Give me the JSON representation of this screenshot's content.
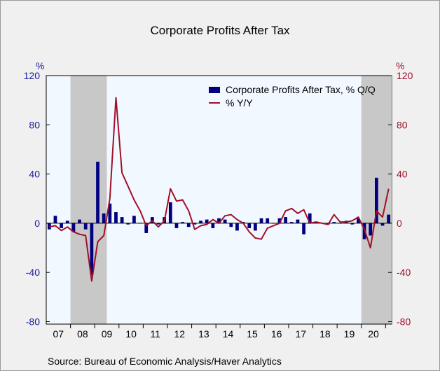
{
  "title": "Corporate Profits After Tax",
  "source": "Source:  Bureau of Economic Analysis/Haver Analytics",
  "colors": {
    "bar": "#000080",
    "line": "#a0102a",
    "left_axis": "#1a1aa0",
    "right_axis": "#a0102a",
    "plot_bg": "#f2f8ff",
    "recession": "#c8c8c8"
  },
  "chart_data": {
    "type": "bar+line",
    "left_unit": "%",
    "right_unit": "%",
    "ylim": [
      -82,
      120
    ],
    "left_ticks": [
      120,
      80,
      40,
      0,
      -40,
      -80
    ],
    "right_ticks": [
      120,
      80,
      40,
      0,
      -40,
      -80
    ],
    "tick_labels_left": [
      "120",
      "80",
      "40",
      "0",
      "-40",
      "-80"
    ],
    "tick_labels_right": [
      "120",
      "80",
      "40",
      "0",
      "-40",
      "-80"
    ],
    "year_labels": [
      "07",
      "08",
      "09",
      "10",
      "11",
      "12",
      "13",
      "14",
      "15",
      "16",
      "17",
      "18",
      "19",
      "20"
    ],
    "start": "2007Q1",
    "end": "2021Q1",
    "recessions": [
      [
        "2008Q1",
        "2009Q2"
      ],
      [
        "2020Q1",
        "2021Q1"
      ]
    ],
    "legend_position": "top-right",
    "series": [
      {
        "name": "Corporate Profits After Tax, % Q/Q",
        "type": "bar",
        "x": [
          "2007Q1",
          "2007Q2",
          "2007Q3",
          "2007Q4",
          "2008Q1",
          "2008Q2",
          "2008Q3",
          "2008Q4",
          "2009Q1",
          "2009Q2",
          "2009Q3",
          "2009Q4",
          "2010Q1",
          "2010Q2",
          "2010Q3",
          "2010Q4",
          "2011Q1",
          "2011Q2",
          "2011Q3",
          "2011Q4",
          "2012Q1",
          "2012Q2",
          "2012Q3",
          "2012Q4",
          "2013Q1",
          "2013Q2",
          "2013Q3",
          "2013Q4",
          "2014Q1",
          "2014Q2",
          "2014Q3",
          "2014Q4",
          "2015Q1",
          "2015Q2",
          "2015Q3",
          "2015Q4",
          "2016Q1",
          "2016Q2",
          "2016Q3",
          "2016Q4",
          "2017Q1",
          "2017Q2",
          "2017Q3",
          "2017Q4",
          "2018Q1",
          "2018Q2",
          "2018Q3",
          "2018Q4",
          "2019Q1",
          "2019Q2",
          "2019Q3",
          "2019Q4",
          "2020Q1",
          "2020Q2",
          "2020Q3",
          "2020Q4",
          "2021Q1"
        ],
        "values": [
          -5,
          6,
          -4,
          2,
          -7,
          3,
          -5,
          -42,
          50,
          8,
          16,
          9,
          5,
          -1,
          6,
          0,
          -8,
          5,
          -1,
          5,
          17,
          -4,
          1,
          -3,
          -1,
          2,
          3,
          -4,
          4,
          3,
          -3,
          -6,
          1,
          -4,
          -6,
          4,
          4,
          0,
          4,
          5,
          1,
          3,
          -9,
          8,
          1,
          0,
          -1,
          1,
          0,
          2,
          -1,
          4,
          -13,
          -10,
          37,
          -2,
          7
        ]
      },
      {
        "name": "% Y/Y",
        "type": "line",
        "x": [
          "2007Q1",
          "2007Q2",
          "2007Q3",
          "2007Q4",
          "2008Q1",
          "2008Q2",
          "2008Q3",
          "2008Q4",
          "2009Q1",
          "2009Q2",
          "2009Q3",
          "2009Q4",
          "2010Q1",
          "2010Q2",
          "2010Q3",
          "2010Q4",
          "2011Q1",
          "2011Q2",
          "2011Q3",
          "2011Q4",
          "2012Q1",
          "2012Q2",
          "2012Q3",
          "2012Q4",
          "2013Q1",
          "2013Q2",
          "2013Q3",
          "2013Q4",
          "2014Q1",
          "2014Q2",
          "2014Q3",
          "2014Q4",
          "2015Q1",
          "2015Q2",
          "2015Q3",
          "2015Q4",
          "2016Q1",
          "2016Q2",
          "2016Q3",
          "2016Q4",
          "2017Q1",
          "2017Q2",
          "2017Q3",
          "2017Q4",
          "2018Q1",
          "2018Q2",
          "2018Q3",
          "2018Q4",
          "2019Q1",
          "2019Q2",
          "2019Q3",
          "2019Q4",
          "2020Q1",
          "2020Q2",
          "2020Q3",
          "2020Q4",
          "2021Q1"
        ],
        "values": [
          -3,
          -2,
          -6,
          -3,
          -7,
          -9,
          -10,
          -47,
          -15,
          -10,
          20,
          102,
          41,
          30,
          19,
          10,
          -2,
          2,
          -3,
          2,
          28,
          18,
          19,
          10,
          -5,
          -2,
          -1,
          3,
          0,
          6,
          7,
          3,
          0,
          -7,
          -12,
          -13,
          -4,
          -2,
          0,
          10,
          12,
          8,
          11,
          0,
          1,
          0,
          -1,
          7,
          1,
          1,
          2,
          5,
          -5,
          -20,
          10,
          5,
          28
        ]
      }
    ]
  }
}
